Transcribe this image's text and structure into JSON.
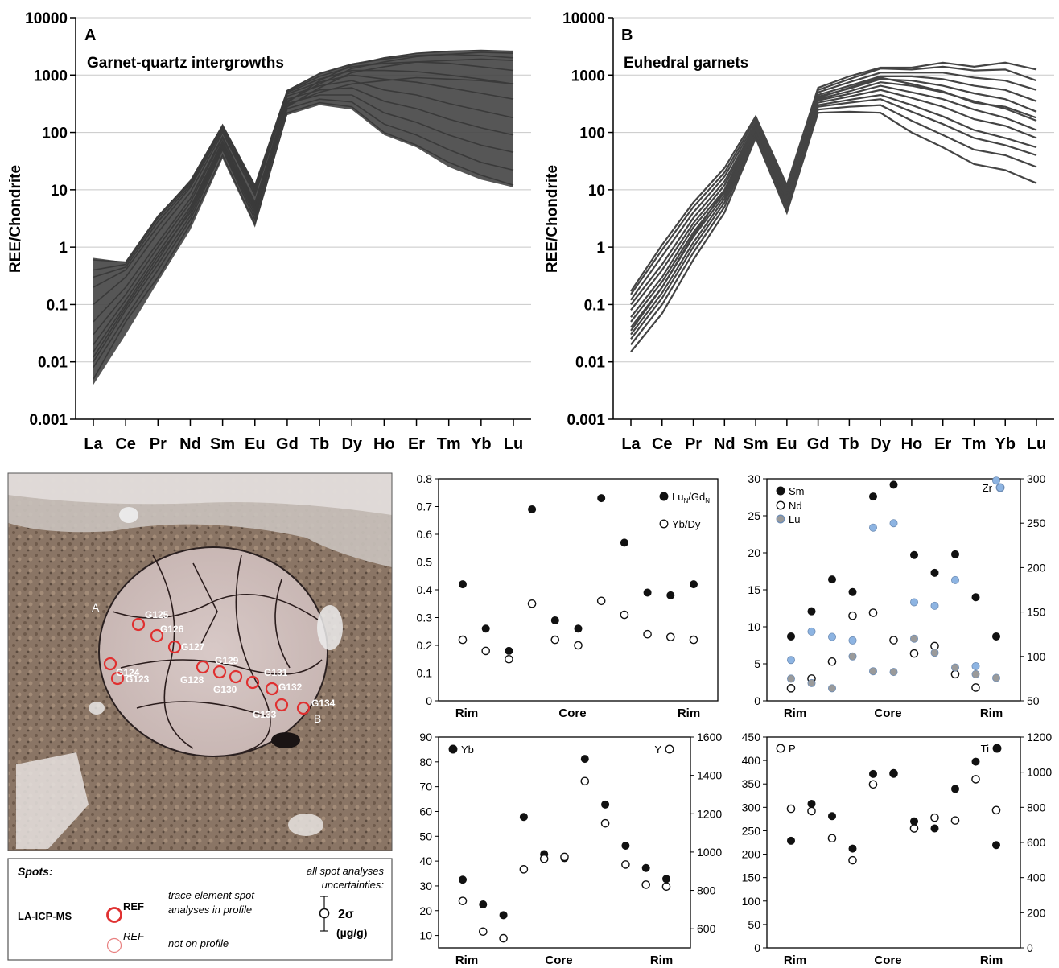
{
  "chart_data": [
    {
      "type": "line",
      "panel": "A",
      "title": "Garnet-quartz intergrowths",
      "xlabel": "",
      "ylabel": "REE/Chondrite",
      "yscale": "log",
      "ylim": [
        0.001,
        10000
      ],
      "yticks": [
        "0.001",
        "0.01",
        "0.1",
        "1",
        "10",
        "100",
        "1000",
        "10000"
      ],
      "categories": [
        "La",
        "Ce",
        "Pr",
        "Nd",
        "Sm",
        "Eu",
        "Gd",
        "Tb",
        "Dy",
        "Ho",
        "Er",
        "Tm",
        "Yb",
        "Lu"
      ],
      "grid": "horizontal",
      "line_color": "#444444",
      "envelope": {
        "description_values": "approximate range of the many spot profiles",
        "min": [
          0.004,
          0.03,
          0.25,
          2,
          35,
          2.2,
          200,
          300,
          250,
          90,
          55,
          25,
          15,
          11
        ],
        "max": [
          0.65,
          0.55,
          3.5,
          15,
          140,
          12,
          550,
          1100,
          1600,
          2000,
          2400,
          2600,
          2700,
          2600
        ]
      },
      "series": [
        {
          "values": [
            0.005,
            0.05,
            0.3,
            2.5,
            40,
            2.5,
            220,
            330,
            280,
            100,
            60,
            30,
            18,
            12
          ]
        },
        {
          "values": [
            0.01,
            0.08,
            0.5,
            3.5,
            55,
            3.5,
            260,
            380,
            340,
            140,
            90,
            50,
            30,
            22
          ]
        },
        {
          "values": [
            0.02,
            0.12,
            0.8,
            5,
            70,
            5,
            320,
            450,
            450,
            220,
            150,
            90,
            60,
            45
          ]
        },
        {
          "values": [
            0.05,
            0.2,
            1.2,
            7,
            85,
            6,
            380,
            550,
            600,
            350,
            260,
            170,
            120,
            90
          ]
        },
        {
          "values": [
            0.1,
            0.3,
            1.8,
            9,
            100,
            8,
            430,
            650,
            800,
            550,
            450,
            320,
            240,
            180
          ]
        },
        {
          "values": [
            0.2,
            0.4,
            2.3,
            11,
            110,
            9,
            470,
            750,
            1000,
            850,
            750,
            600,
            480,
            380
          ]
        },
        {
          "values": [
            0.3,
            0.45,
            2.8,
            12,
            120,
            10,
            500,
            850,
            1200,
            1200,
            1150,
            1000,
            850,
            700
          ]
        },
        {
          "values": [
            0.4,
            0.5,
            3.2,
            13,
            130,
            11,
            520,
            950,
            1400,
            1600,
            1700,
            1600,
            1400,
            1200
          ]
        },
        {
          "values": [
            0.6,
            0.55,
            3.5,
            14,
            135,
            12,
            540,
            1050,
            1550,
            1900,
            2200,
            2300,
            2200,
            2000
          ]
        },
        {
          "values": [
            0.015,
            0.1,
            0.7,
            4,
            60,
            4,
            300,
            500,
            700,
            800,
            900,
            850,
            800,
            700
          ]
        },
        {
          "values": [
            0.008,
            0.06,
            0.4,
            3,
            50,
            3,
            280,
            600,
            1100,
            1400,
            1700,
            1800,
            1900,
            1800
          ]
        },
        {
          "values": [
            0.03,
            0.15,
            1,
            6,
            80,
            5.5,
            350,
            700,
            1300,
            1700,
            2100,
            2300,
            2500,
            2400
          ]
        },
        {
          "values": [
            0.012,
            0.09,
            0.6,
            4.5,
            65,
            4.5,
            330,
            800,
            1500,
            2000,
            2400,
            2600,
            2700,
            2600
          ]
        }
      ]
    },
    {
      "type": "line",
      "panel": "B",
      "title": "Euhedral garnets",
      "xlabel": "",
      "ylabel": "REE/Chondrite",
      "yscale": "log",
      "ylim": [
        0.001,
        10000
      ],
      "yticks": [
        "0.001",
        "0.01",
        "0.1",
        "1",
        "10",
        "100",
        "1000",
        "10000"
      ],
      "categories": [
        "La",
        "Ce",
        "Pr",
        "Nd",
        "Sm",
        "Eu",
        "Gd",
        "Tb",
        "Dy",
        "Ho",
        "Er",
        "Tm",
        "Yb",
        "Lu"
      ],
      "grid": "horizontal",
      "line_color": "#444444",
      "series": [
        {
          "values": [
            0.015,
            0.07,
            0.6,
            4,
            80,
            4,
            220,
            230,
            220,
            100,
            55,
            28,
            22,
            13
          ]
        },
        {
          "values": [
            0.02,
            0.1,
            0.8,
            5,
            85,
            4.5,
            250,
            280,
            300,
            160,
            90,
            50,
            40,
            25
          ]
        },
        {
          "values": [
            0.025,
            0.13,
            1.0,
            6,
            90,
            5,
            280,
            330,
            380,
            230,
            140,
            80,
            60,
            40
          ]
        },
        {
          "values": [
            0.03,
            0.16,
            1.2,
            7,
            95,
            5.5,
            300,
            370,
            450,
            300,
            190,
            110,
            80,
            55
          ]
        },
        {
          "values": [
            0.04,
            0.2,
            1.5,
            8,
            100,
            6,
            330,
            420,
            550,
            400,
            280,
            170,
            130,
            80
          ]
        },
        {
          "values": [
            0.05,
            0.25,
            1.8,
            9,
            110,
            6.5,
            360,
            470,
            650,
            500,
            380,
            250,
            180,
            110
          ]
        },
        {
          "values": [
            0.06,
            0.3,
            2.2,
            10,
            115,
            7,
            380,
            520,
            750,
            650,
            500,
            350,
            260,
            160
          ]
        },
        {
          "values": [
            0.08,
            0.4,
            2.6,
            12,
            125,
            8,
            420,
            580,
            850,
            800,
            650,
            480,
            380,
            230
          ]
        },
        {
          "values": [
            0.1,
            0.5,
            3.2,
            14,
            135,
            9,
            450,
            650,
            950,
            950,
            850,
            650,
            550,
            350
          ]
        },
        {
          "values": [
            0.12,
            0.7,
            4,
            17,
            150,
            10,
            500,
            750,
            1100,
            1100,
            1100,
            900,
            800,
            550
          ]
        },
        {
          "values": [
            0.15,
            0.9,
            5,
            20,
            170,
            11,
            550,
            850,
            1300,
            1250,
            1400,
            1200,
            1250,
            800
          ]
        },
        {
          "values": [
            0.17,
            1.1,
            6,
            24,
            190,
            12,
            600,
            950,
            1350,
            1350,
            1650,
            1400,
            1650,
            1250
          ]
        },
        {
          "values": [
            0.035,
            0.2,
            1.6,
            10,
            120,
            7,
            400,
            600,
            900,
            700,
            520,
            330,
            280,
            180
          ]
        }
      ]
    },
    {
      "type": "scatter",
      "panel": "ratios",
      "title": "",
      "xcategories": [
        "Rim",
        "Core",
        "Rim"
      ],
      "ylim": [
        0,
        0.8
      ],
      "yticks": [
        "0",
        "0.1",
        "0.2",
        "0.3",
        "0.4",
        "0.5",
        "0.6",
        "0.7",
        "0.8"
      ],
      "series": [
        {
          "name": "LuN/GdN",
          "name_parts": [
            "Lu",
            "N",
            "/Gd",
            "N"
          ],
          "marker": "filled",
          "color": "#111111",
          "values": [
            0.42,
            0.26,
            0.18,
            0.69,
            0.29,
            0.26,
            0.73,
            0.57,
            0.39,
            0.38,
            0.42
          ]
        },
        {
          "name": "Yb/Dy",
          "marker": "open",
          "color": "#111111",
          "values": [
            0.22,
            0.18,
            0.15,
            0.35,
            0.22,
            0.2,
            0.36,
            0.31,
            0.24,
            0.23,
            0.22
          ]
        }
      ]
    },
    {
      "type": "scatter",
      "panel": "Sm-Nd-Lu-Zr",
      "title": "",
      "xcategories": [
        "Rim",
        "Core",
        "Rim"
      ],
      "ylim": [
        0,
        30
      ],
      "yticks": [
        "0",
        "5",
        "10",
        "15",
        "20",
        "25",
        "30"
      ],
      "y2lim": [
        50,
        300
      ],
      "y2ticks": [
        "50",
        "100",
        "150",
        "200",
        "250",
        "300"
      ],
      "series": [
        {
          "name": "Sm",
          "marker": "filled",
          "color": "#111111",
          "axis": "left",
          "values": [
            8.7,
            12.1,
            16.4,
            14.7,
            27.6,
            29.2,
            19.7,
            17.3,
            19.8,
            14.0,
            8.7
          ]
        },
        {
          "name": "Nd",
          "marker": "open",
          "color": "#111111",
          "axis": "left",
          "values": [
            1.7,
            3.0,
            5.3,
            11.5,
            11.9,
            8.2,
            6.4,
            7.4,
            3.6,
            1.8,
            null
          ]
        },
        {
          "name": "Lu",
          "marker": "filled",
          "color": "#9a9a9a",
          "axis": "left",
          "values": [
            3.0,
            2.4,
            1.7,
            6.0,
            4.0,
            3.9,
            8.4,
            6.5,
            4.5,
            3.6,
            3.1
          ]
        },
        {
          "name": "Zr",
          "marker": "filled",
          "color": "#8db4e2",
          "axis": "right",
          "values": [
            96,
            128,
            122,
            118,
            245,
            250,
            161,
            157,
            186,
            89,
            298
          ]
        }
      ]
    },
    {
      "type": "scatter",
      "panel": "Yb-Y",
      "title": "",
      "xcategories": [
        "Rim",
        "Core",
        "Rim"
      ],
      "ylim": [
        5,
        90
      ],
      "yticks": [
        "10",
        "20",
        "30",
        "40",
        "50",
        "60",
        "70",
        "80",
        "90"
      ],
      "y2lim": [
        500,
        1600
      ],
      "y2ticks": [
        "600",
        "800",
        "1000",
        "1200",
        "1400",
        "1600"
      ],
      "series": [
        {
          "name": "Yb",
          "marker": "filled",
          "color": "#111111",
          "axis": "left",
          "values": [
            32.5,
            22.5,
            18.2,
            57.8,
            42.8,
            41.2,
            81.2,
            62.8,
            46.2,
            37.2,
            32.8
          ]
        },
        {
          "name": "Y",
          "marker": "open",
          "color": "#111111",
          "axis": "right",
          "values": [
            745,
            585,
            550,
            910,
            965,
            975,
            1370,
            1150,
            935,
            830,
            820
          ]
        }
      ]
    },
    {
      "type": "scatter",
      "panel": "P-Ti",
      "title": "",
      "xcategories": [
        "Rim",
        "Core",
        "Rim"
      ],
      "ylim": [
        0,
        450
      ],
      "yticks": [
        "0",
        "50",
        "100",
        "150",
        "200",
        "250",
        "300",
        "350",
        "400",
        "450"
      ],
      "y2lim": [
        0,
        1200
      ],
      "y2ticks": [
        "0",
        "200",
        "400",
        "600",
        "800",
        "1000",
        "1200"
      ],
      "series": [
        {
          "name": "P",
          "marker": "open",
          "color": "#111111",
          "axis": "left",
          "values": [
            297,
            292,
            234,
            187,
            349,
            372,
            255,
            278,
            272,
            360,
            294
          ]
        },
        {
          "name": "Ti",
          "marker": "filled",
          "color": "#111111",
          "axis": "right",
          "values": [
            610,
            820,
            750,
            565,
            990,
            995,
            720,
            680,
            905,
            1060,
            585
          ]
        }
      ]
    }
  ],
  "photo": {
    "point_labels": {
      "start": "A",
      "end": "B"
    },
    "spots": [
      "G123",
      "G124",
      "G125",
      "G126",
      "G127",
      "G128",
      "G129",
      "G130",
      "G131",
      "G132",
      "G133",
      "G134"
    ],
    "spot_color": "#e03030"
  },
  "legend_box": {
    "title": "Spots:",
    "method": "LA-ICP-MS",
    "ref_label": "REF",
    "ref_label_faint": "REF",
    "profile_text_1": "trace element spot",
    "profile_text_2": "analyses in profile",
    "not_profile_text": "not on profile",
    "uncertainty_text_1": "all spot analyses",
    "uncertainty_text_2": "uncertainties:",
    "sigma_label": "2σ",
    "units_label": "(µg/g)"
  }
}
